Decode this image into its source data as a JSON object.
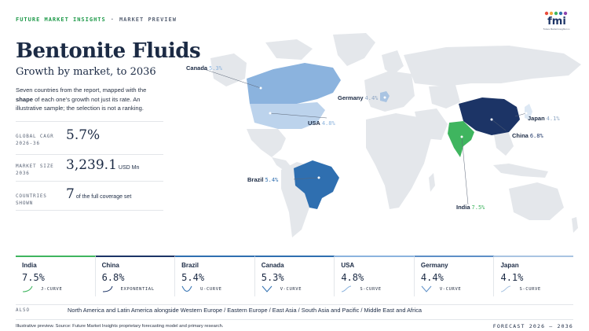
{
  "header": {
    "brand": "FUTURE MARKET INSIGHTS",
    "separator": "·",
    "section": "MARKET PREVIEW",
    "logo_text": "fmi",
    "logo_tagline": "Future Market Insights Inc."
  },
  "title": "Bentonite Fluids",
  "subtitle": "Growth by market, to 2036",
  "description": {
    "before": "Seven countries from the report, mapped with the ",
    "bold": "shape",
    "after": " of each one's growth not just its rate. An illustrative sample; the selection is not a ranking."
  },
  "stats": [
    {
      "label_line1": "GLOBAL CAGR",
      "label_line2": "2026-36",
      "value": "5.7%",
      "unit": ""
    },
    {
      "label_line1": "MARKET SIZE",
      "label_line2": "2036",
      "value": "3,239.1",
      "unit": "USD Mn"
    },
    {
      "label_line1": "COUNTRIES",
      "label_line2": "SHOWN",
      "value": "7",
      "unit": "of the full coverage set"
    }
  ],
  "map": {
    "countries": [
      {
        "name": "India",
        "value": "7.5%",
        "color": "#3fb55f"
      },
      {
        "name": "China",
        "value": "6.8%",
        "color": "#1c3466"
      },
      {
        "name": "Brazil",
        "value": "5.4%",
        "color": "#2f6fb0"
      },
      {
        "name": "Canada",
        "value": "5.3%",
        "color": "#8bb3de"
      },
      {
        "name": "USA",
        "value": "4.8%",
        "color": "#bcd3ec"
      },
      {
        "name": "Germany",
        "value": "4.4%",
        "color": "#a9c4e2"
      },
      {
        "name": "Japan",
        "value": "4.1%",
        "color": "#dde8f4"
      }
    ],
    "land_color": "#e4e7eb"
  },
  "cards": [
    {
      "name": "India",
      "value": "7.5%",
      "shape": "J-CURVE",
      "color": "#3fb55f"
    },
    {
      "name": "China",
      "value": "6.8%",
      "shape": "EXPONENTIAL",
      "color": "#1c3466"
    },
    {
      "name": "Brazil",
      "value": "5.4%",
      "shape": "U-CURVE",
      "color": "#2f6fb0"
    },
    {
      "name": "Canada",
      "value": "5.3%",
      "shape": "V-CURVE",
      "color": "#2f6fb0"
    },
    {
      "name": "USA",
      "value": "4.8%",
      "shape": "S-CURVE",
      "color": "#8bb3de"
    },
    {
      "name": "Germany",
      "value": "4.4%",
      "shape": "V-CURVE",
      "color": "#5d8fc7"
    },
    {
      "name": "Japan",
      "value": "4.1%",
      "shape": "S-CURVE",
      "color": "#a9c4e2"
    }
  ],
  "also": {
    "label": "ALSO",
    "regions": [
      "North America and Latin America alongside Western Europe",
      "Eastern Europe",
      "East Asia",
      "South Asia and Pacific",
      "Middle East and Africa"
    ],
    "separator": " / "
  },
  "footer": {
    "source": "Illustrative preview. Source: Future Market Insights proprietary forecasting model and primary research.",
    "forecast": "FORECAST 2026 – 2036"
  }
}
